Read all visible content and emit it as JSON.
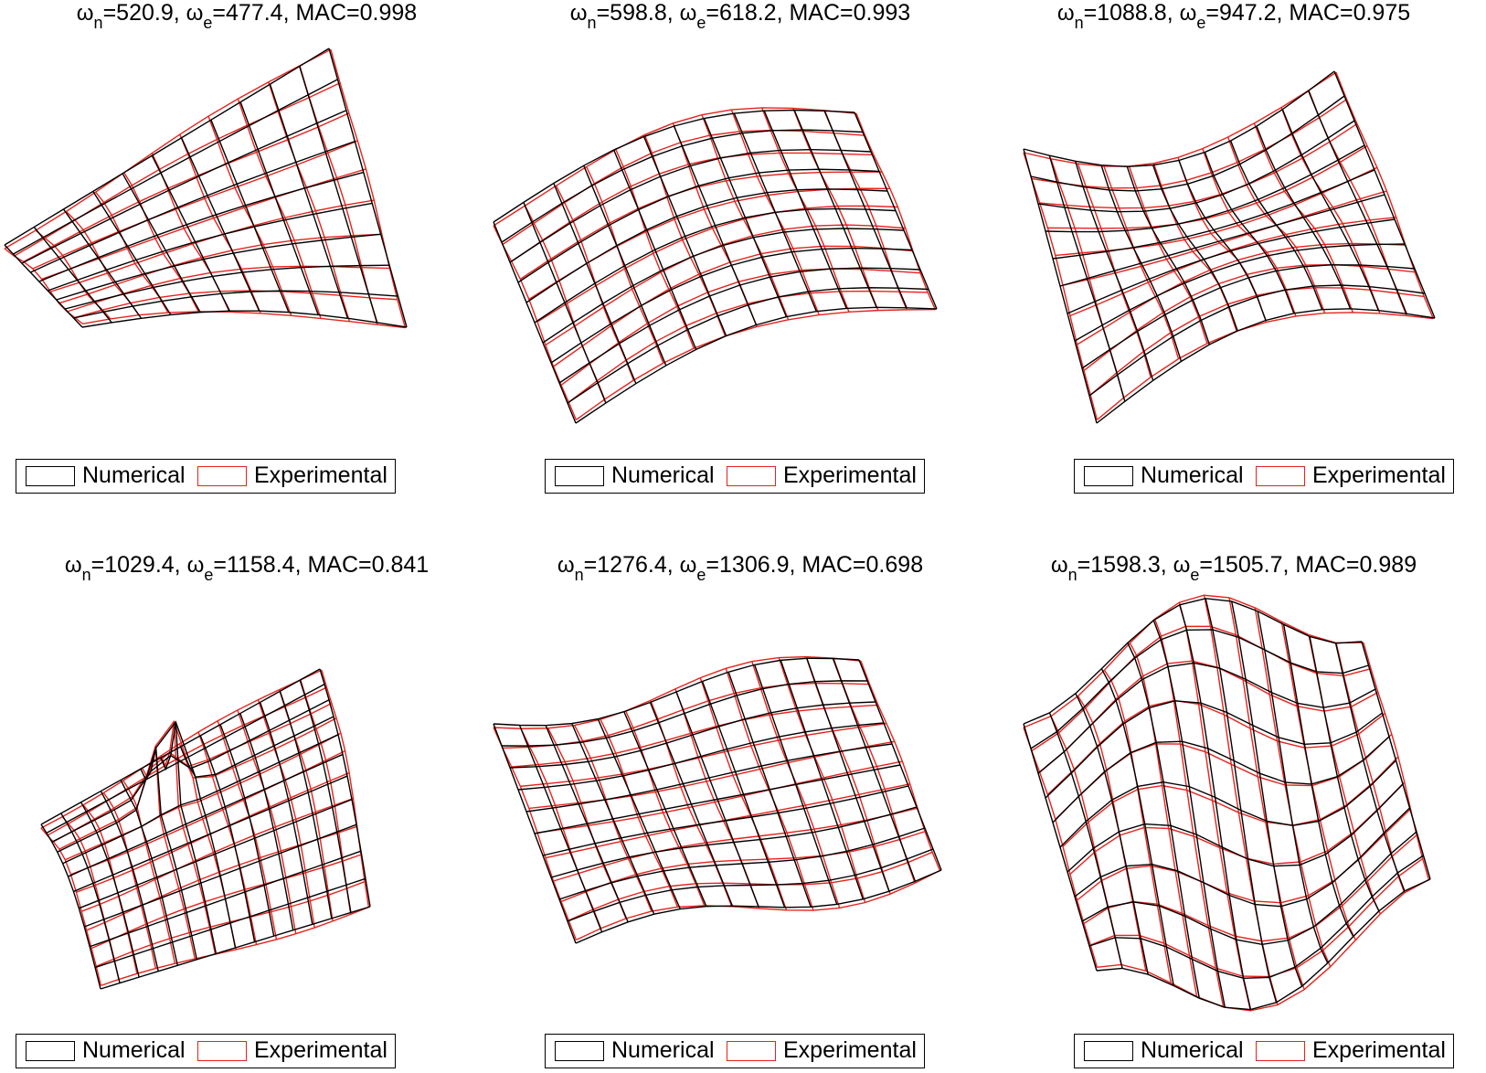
{
  "legend": {
    "numerical": "Numerical",
    "experimental": "Experimental"
  },
  "colors": {
    "numerical": "#000000",
    "experimental": "#e8221c"
  },
  "chart_data": [
    {
      "type": "mesh",
      "omega_n": "520.9",
      "omega_e": "477.4",
      "mac": "0.998"
    },
    {
      "type": "mesh",
      "omega_n": "598.8",
      "omega_e": "618.2",
      "mac": "0.993"
    },
    {
      "type": "mesh",
      "omega_n": "1088.8",
      "omega_e": "947.2",
      "mac": "0.975"
    },
    {
      "type": "mesh",
      "omega_n": "1029.4",
      "omega_e": "1158.4",
      "mac": "0.841"
    },
    {
      "type": "mesh",
      "omega_n": "1276.4",
      "omega_e": "1306.9",
      "mac": "0.698"
    },
    {
      "type": "mesh",
      "omega_n": "1598.3",
      "omega_e": "1505.7",
      "mac": "0.989"
    }
  ]
}
